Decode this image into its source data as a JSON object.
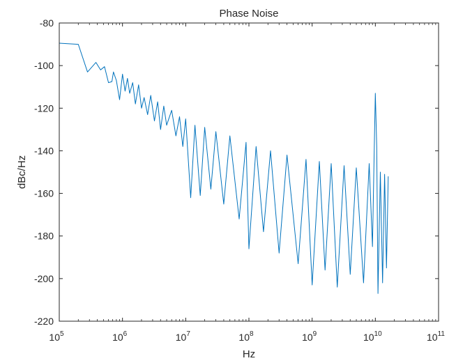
{
  "chart_data": {
    "type": "line",
    "title": "Phase Noise",
    "xlabel": "Hz",
    "ylabel": "dBc/Hz",
    "xscale": "log",
    "xlim": [
      100000,
      100000000000
    ],
    "ylim": [
      -220,
      -80
    ],
    "x_ticks": [
      {
        "base": "10",
        "exp": "5",
        "value": 100000
      },
      {
        "base": "10",
        "exp": "6",
        "value": 1000000
      },
      {
        "base": "10",
        "exp": "7",
        "value": 10000000
      },
      {
        "base": "10",
        "exp": "8",
        "value": 100000000
      },
      {
        "base": "10",
        "exp": "9",
        "value": 1000000000
      },
      {
        "base": "10",
        "exp": "10",
        "value": 10000000000
      },
      {
        "base": "10",
        "exp": "11",
        "value": 100000000000
      }
    ],
    "y_ticks": [
      "-80",
      "-100",
      "-120",
      "-140",
      "-160",
      "-180",
      "-200",
      "-220"
    ],
    "grid": false,
    "line_color": "#0072bd",
    "series": [
      {
        "points": [
          [
            100000,
            -89.5
          ],
          [
            200000,
            -90.0
          ],
          [
            280000,
            -103.0
          ],
          [
            380000,
            -98.5
          ],
          [
            450000,
            -102.0
          ],
          [
            520000,
            -100.5
          ],
          [
            600000,
            -108.0
          ],
          [
            680000,
            -107.5
          ],
          [
            720000,
            -103.0
          ],
          [
            800000,
            -107.0
          ],
          [
            900000,
            -116.0
          ],
          [
            1000000,
            -104.0
          ],
          [
            1100000,
            -112.0
          ],
          [
            1200000,
            -106.0
          ],
          [
            1300000,
            -113.0
          ],
          [
            1450000,
            -108.0
          ],
          [
            1600000,
            -118.0
          ],
          [
            1800000,
            -109.0
          ],
          [
            2000000,
            -120.0
          ],
          [
            2200000,
            -115.0
          ],
          [
            2500000,
            -123.0
          ],
          [
            2800000,
            -114.0
          ],
          [
            3200000,
            -126.0
          ],
          [
            3600000,
            -117.0
          ],
          [
            4000000,
            -130.0
          ],
          [
            4500000,
            -119.0
          ],
          [
            5000000,
            -128.0
          ],
          [
            6000000,
            -121.0
          ],
          [
            7000000,
            -133.0
          ],
          [
            8000000,
            -124.0
          ],
          [
            9000000,
            -138.0
          ],
          [
            10000000,
            -125.0
          ],
          [
            12000000,
            -162.0
          ],
          [
            14000000,
            -128.0
          ],
          [
            17000000,
            -161.0
          ],
          [
            20000000,
            -129.0
          ],
          [
            25000000,
            -158.0
          ],
          [
            30000000,
            -131.0
          ],
          [
            40000000,
            -165.0
          ],
          [
            50000000,
            -133.0
          ],
          [
            70000000,
            -172.0
          ],
          [
            90000000,
            -136.0
          ],
          [
            100000000,
            -186.0
          ],
          [
            130000000,
            -138.0
          ],
          [
            170000000,
            -178.0
          ],
          [
            220000000,
            -140.0
          ],
          [
            300000000,
            -188.0
          ],
          [
            400000000,
            -142.0
          ],
          [
            600000000,
            -193.0
          ],
          [
            800000000,
            -144.0
          ],
          [
            1000000000,
            -203.0
          ],
          [
            1300000000,
            -145.0
          ],
          [
            1600000000,
            -196.0
          ],
          [
            2000000000,
            -146.0
          ],
          [
            2500000000,
            -204.0
          ],
          [
            3200000000,
            -147.0
          ],
          [
            4000000000,
            -198.0
          ],
          [
            5000000000,
            -148.0
          ],
          [
            6500000000,
            -202.0
          ],
          [
            8000000000,
            -146.0
          ],
          [
            9000000000,
            -185.0
          ],
          [
            9600000000,
            -140.0
          ],
          [
            10000000000,
            -113.0
          ],
          [
            10500000000,
            -138.0
          ],
          [
            11000000000,
            -207.0
          ],
          [
            12000000000,
            -150.0
          ],
          [
            13000000000,
            -202.0
          ],
          [
            14000000000,
            -151.0
          ],
          [
            15000000000,
            -195.0
          ],
          [
            16000000000,
            -152.0
          ]
        ]
      }
    ]
  }
}
